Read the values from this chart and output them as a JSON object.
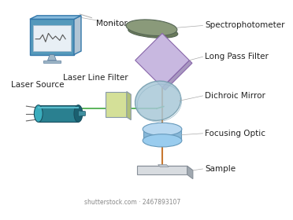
{
  "bg_color": "#ffffff",
  "labels": {
    "monitor": "Monitor",
    "spectrophotometer": "Spectrophotometer",
    "long_pass_filter": "Long Pass Filter",
    "laser_line_filter": "Laser Line Filter",
    "dichroic_mirror": "Dichroic Mirror",
    "laser_source": "Laser Source",
    "focusing_optic": "Focusing Optic",
    "sample": "Sample",
    "watermark": "shutterstock.com · 2467893107"
  },
  "colors": {
    "monitor_screen": "#e8eff5",
    "monitor_body": "#b0c4d4",
    "monitor_border": "#4a7fa5",
    "monitor_stand": "#a0b8c8",
    "waveform": "#555555",
    "spectrophotometer_top": "#8a9a7a",
    "spectrophotometer_side": "#6a7a5a",
    "long_pass_filter_top": "#c8b8e0",
    "long_pass_filter_side": "#a898c0",
    "laser_line_filter_top": "#d4e098",
    "laser_line_filter_side": "#b0c078",
    "dichroic_mirror_fill": "#a8c8d8",
    "dichroic_mirror_border": "#7099aa",
    "laser_body": "#2a8090",
    "laser_body2": "#1a6070",
    "laser_connector": "#4090a0",
    "focusing_optic_top": "#b8d8f0",
    "focusing_optic_side": "#88b8d8",
    "sample_plate_top": "#c8ccd0",
    "sample_plate_side": "#a0a8b0",
    "beam_color_orange": "#c87830",
    "beam_color_green": "#40a840",
    "connector_line": "#888888",
    "label_color": "#222222"
  },
  "label_fontsize": 7.5,
  "watermark_fontsize": 5.5
}
